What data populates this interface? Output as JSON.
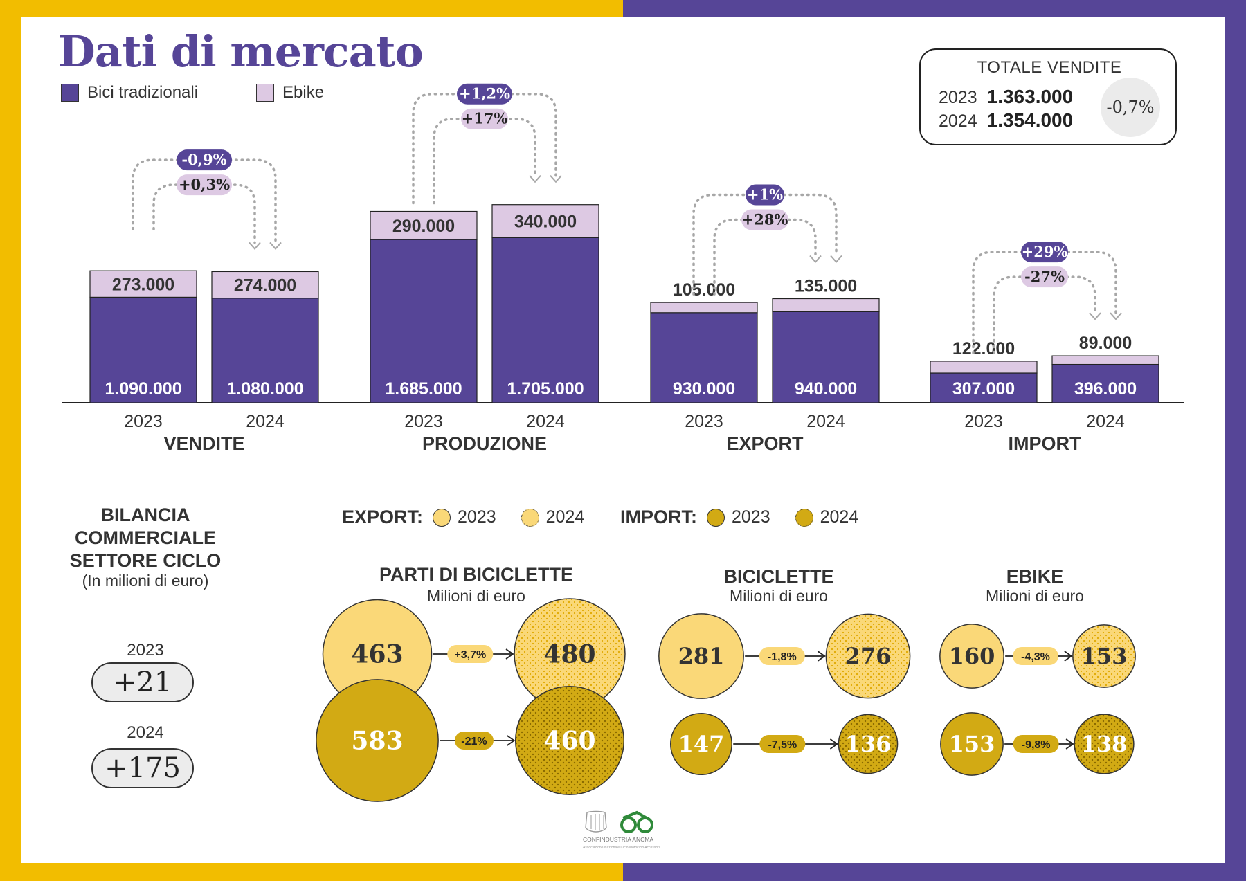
{
  "title": "Dati di mercato",
  "legend": [
    {
      "label": "Bici tradizionali",
      "color": "#564597"
    },
    {
      "label": "Ebike",
      "color": "#ddc9e3"
    }
  ],
  "totale_vendite": {
    "title": "TOTALE VENDITE",
    "rows": [
      {
        "year": "2023",
        "value": "1.363.000"
      },
      {
        "year": "2024",
        "value": "1.354.000"
      }
    ],
    "change": "-0,7%"
  },
  "chart_data": {
    "type": "bar",
    "stacked": true,
    "ylim": [
      0,
      2100000
    ],
    "series_names": [
      "Bici tradizionali",
      "Ebike"
    ],
    "groups": [
      {
        "name": "VENDITE",
        "bars": [
          {
            "year": "2023",
            "traditional": 1090000,
            "ebike": 273000,
            "traditional_label": "1.090.000",
            "ebike_label": "273.000"
          },
          {
            "year": "2024",
            "traditional": 1080000,
            "ebike": 274000,
            "traditional_label": "1.080.000",
            "ebike_label": "274.000"
          }
        ],
        "change_traditional": "-0,9%",
        "change_ebike": "+0,3%"
      },
      {
        "name": "PRODUZIONE",
        "bars": [
          {
            "year": "2023",
            "traditional": 1685000,
            "ebike": 290000,
            "traditional_label": "1.685.000",
            "ebike_label": "290.000"
          },
          {
            "year": "2024",
            "traditional": 1705000,
            "ebike": 340000,
            "traditional_label": "1.705.000",
            "ebike_label": "340.000"
          }
        ],
        "change_traditional": "+1,2%",
        "change_ebike": "+17%"
      },
      {
        "name": "EXPORT",
        "bars": [
          {
            "year": "2023",
            "traditional": 930000,
            "ebike": 105000,
            "traditional_label": "930.000",
            "ebike_label": "105.000"
          },
          {
            "year": "2024",
            "traditional": 940000,
            "ebike": 135000,
            "traditional_label": "940.000",
            "ebike_label": "135.000"
          }
        ],
        "change_traditional": "+1%",
        "change_ebike": "+28%"
      },
      {
        "name": "IMPORT",
        "bars": [
          {
            "year": "2023",
            "traditional": 307000,
            "ebike": 122000,
            "traditional_label": "307.000",
            "ebike_label": "122.000"
          },
          {
            "year": "2024",
            "traditional": 396000,
            "ebike": 89000,
            "traditional_label": "396.000",
            "ebike_label": "89.000"
          }
        ],
        "change_traditional": "+29%",
        "change_ebike": "-27%"
      }
    ]
  },
  "bilancia": {
    "title_lines": [
      "BILANCIA",
      "COMMERCIALE",
      "SETTORE CICLO"
    ],
    "subtitle": "(In milioni di euro)",
    "items": [
      {
        "year": "2023",
        "value": "+21"
      },
      {
        "year": "2024",
        "value": "+175"
      }
    ]
  },
  "circle_legend": {
    "export_label": "EXPORT:",
    "import_label": "IMPORT:",
    "year_2023": "2023",
    "year_2024": "2024"
  },
  "circle_colors": {
    "export": "#fad878",
    "import": "#d2aa14"
  },
  "circle_groups": [
    {
      "title": "PARTI DI BICICLETTE",
      "subtitle": "Milioni di euro",
      "export": {
        "v2023": 463,
        "v2024": 480,
        "change": "+3,7%"
      },
      "import": {
        "v2023": 583,
        "v2024": 460,
        "change": "-21%"
      }
    },
    {
      "title": "BICICLETTE",
      "subtitle": "Milioni di euro",
      "export": {
        "v2023": 281,
        "v2024": 276,
        "change": "-1,8%"
      },
      "import": {
        "v2023": 147,
        "v2024": 136,
        "change": "-7,5%"
      }
    },
    {
      "title": "EBIKE",
      "subtitle": "Milioni di euro",
      "export": {
        "v2023": 160,
        "v2024": 153,
        "change": "-4,3%"
      },
      "import": {
        "v2023": 153,
        "v2024": 138,
        "change": "-9,8%"
      }
    }
  ],
  "logo": {
    "name": "CONFINDUSTRIA ANCMA",
    "tagline": "Associazione Nazionale Ciclo Motociclo Accessori"
  }
}
